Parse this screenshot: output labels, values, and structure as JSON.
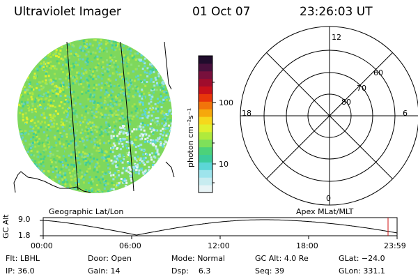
{
  "header": {
    "instrument": "Ultraviolet Imager",
    "date": "01 Oct 07",
    "time": "23:26:03 UT"
  },
  "colorbar": {
    "unit_label": "photon cm⁻²s⁻¹",
    "ticks": [
      "100",
      "10"
    ],
    "colors": [
      "#e8f4f6",
      "#c8ecf0",
      "#9ee4ec",
      "#5cd6d6",
      "#3ccc9c",
      "#4cd27a",
      "#7ee05a",
      "#b0ea3c",
      "#e0f02e",
      "#f6d81c",
      "#f6a80c",
      "#f2740a",
      "#e8360a",
      "#c8101a",
      "#a00c2c",
      "#78103c",
      "#48103c",
      "#200c2c"
    ]
  },
  "polar": {
    "mlt_labels": {
      "top": "12",
      "left": "18",
      "right": "6",
      "bottom": "0"
    },
    "lat_labels": [
      "60",
      "70",
      "80"
    ]
  },
  "projection_labels": {
    "left": "Geographic Lat/Lon",
    "right": "Apex MLat/MLT"
  },
  "timeline": {
    "ylabel": "GC Alt",
    "ymax": "9.0",
    "ymin": "1.8",
    "ticks": [
      "00:00",
      "06:00",
      "12:00",
      "18:00",
      "23:59"
    ]
  },
  "info": {
    "row1": [
      {
        "label": "Flt:",
        "value": "LBHL"
      },
      {
        "label": "Door:",
        "value": "Open"
      },
      {
        "label": "Mode:",
        "value": "Normal"
      },
      {
        "label": "GC Alt:",
        "value": "4.0 Re"
      },
      {
        "label": "GLat:",
        "value": "−24.0"
      }
    ],
    "row2": [
      {
        "label": "IP:",
        "value": "36.0"
      },
      {
        "label": "Gain:",
        "value": "14"
      },
      {
        "label": "Dsp:",
        "value": "6.3"
      },
      {
        "label": "Seq:",
        "value": "39"
      },
      {
        "label": "GLon:",
        "value": "331.1"
      }
    ]
  }
}
